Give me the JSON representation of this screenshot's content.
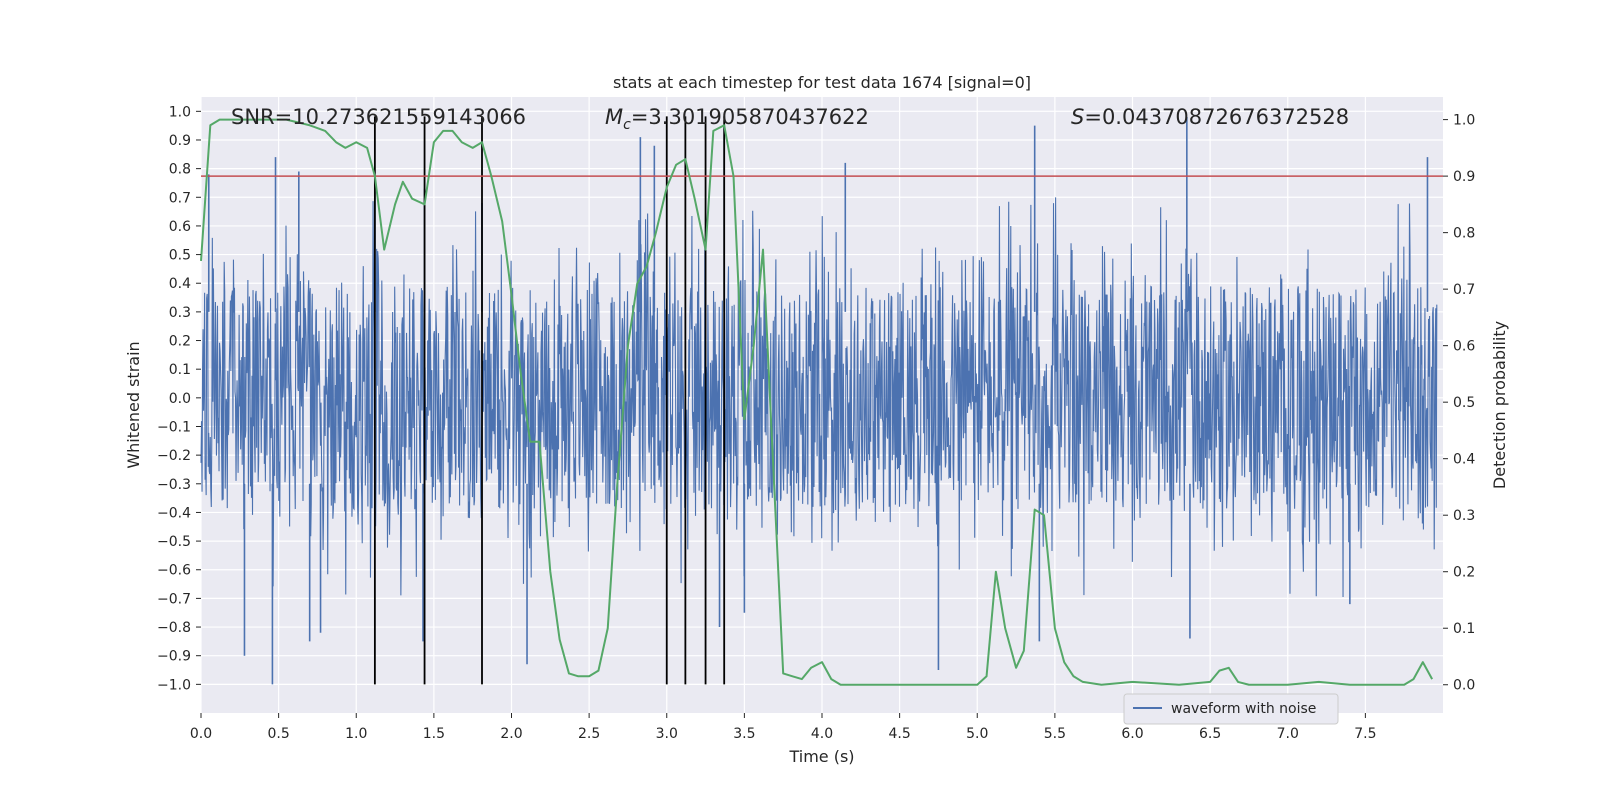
{
  "chart_data": {
    "type": "line",
    "title": "stats at each timestep for test data 1674 [signal=0]",
    "xlabel": "Time (s)",
    "ylabel_left": "Whitened strain",
    "ylabel_right": "Detection probability",
    "xlim": [
      0.0,
      8.0
    ],
    "ylim_left": [
      -1.1,
      1.05
    ],
    "ylim_right": [
      -0.05,
      1.04
    ],
    "xticks": [
      "0.0",
      "0.5",
      "1.0",
      "1.5",
      "2.0",
      "2.5",
      "3.0",
      "3.5",
      "4.0",
      "4.5",
      "5.0",
      "5.5",
      "6.0",
      "6.5",
      "7.0",
      "7.5"
    ],
    "yticks_left": [
      "1.0",
      "0.9",
      "0.8",
      "0.7",
      "0.6",
      "0.5",
      "0.4",
      "0.3",
      "0.2",
      "0.1",
      "0.0",
      "-0.1",
      "-0.2",
      "-0.3",
      "-0.4",
      "-0.5",
      "-0.6",
      "-0.7",
      "-0.8",
      "-0.9",
      "-1.0"
    ],
    "yticks_right": [
      "1.0",
      "0.9",
      "0.8",
      "0.7",
      "0.6",
      "0.5",
      "0.4",
      "0.3",
      "0.2",
      "0.1",
      "0.0"
    ],
    "grid": true,
    "annotations": {
      "snr": "SNR=10.273621559143066",
      "mc_symbol": "M",
      "mc_sub": "c",
      "mc_value": "=3.301905870437622",
      "s_symbol": "S",
      "s_value": "=0.04370872676372528"
    },
    "legend": {
      "label": "waveform with noise",
      "position": "lower-center-right"
    },
    "threshold": {
      "value_right_axis": 0.9,
      "color": "#c44e52"
    },
    "vertical_markers": [
      1.12,
      1.44,
      1.81,
      3.0,
      3.12,
      3.25,
      3.37
    ],
    "marker_range_left": [
      -1.0,
      1.0
    ],
    "waveform": {
      "name": "waveform with noise",
      "color": "#4c72b0",
      "spike_times_up": [
        0.05,
        0.48,
        0.63,
        1.12,
        1.44,
        1.81,
        2.83,
        2.92,
        3.37,
        4.15,
        5.37,
        6.35,
        7.9
      ],
      "spike_values_up": [
        0.78,
        0.84,
        0.79,
        0.77,
        0.73,
        0.68,
        0.91,
        0.88,
        0.95,
        0.82,
        0.95,
        0.98,
        0.84
      ],
      "spike_times_down": [
        0.28,
        0.46,
        0.7,
        0.77,
        1.43,
        2.1,
        3.34,
        3.5,
        4.75,
        5.4,
        6.37,
        7.4
      ],
      "spike_values_down": [
        -0.9,
        -1.0,
        -0.85,
        -0.82,
        -0.85,
        -0.93,
        -0.8,
        -0.75,
        -0.95,
        -0.85,
        -0.84,
        -0.72
      ]
    },
    "detection_probability": {
      "name": "detection probability",
      "color": "#55a868",
      "x": [
        0.0,
        0.06,
        0.12,
        0.25,
        0.4,
        0.55,
        0.7,
        0.8,
        0.87,
        0.93,
        1.0,
        1.07,
        1.12,
        1.18,
        1.25,
        1.3,
        1.36,
        1.44,
        1.5,
        1.56,
        1.62,
        1.68,
        1.75,
        1.81,
        1.87,
        1.94,
        2.0,
        2.06,
        2.12,
        2.18,
        2.25,
        2.31,
        2.37,
        2.43,
        2.5,
        2.56,
        2.62,
        2.68,
        2.75,
        2.81,
        2.87,
        2.93,
        3.0,
        3.06,
        3.12,
        3.18,
        3.25,
        3.3,
        3.37,
        3.43,
        3.5,
        3.56,
        3.62,
        3.68,
        3.75,
        3.81,
        3.87,
        3.93,
        4.0,
        4.06,
        4.12,
        4.3,
        4.6,
        4.8,
        5.0,
        5.06,
        5.12,
        5.18,
        5.25,
        5.3,
        5.37,
        5.43,
        5.5,
        5.56,
        5.62,
        5.68,
        5.8,
        6.0,
        6.3,
        6.5,
        6.56,
        6.62,
        6.68,
        6.75,
        6.87,
        7.0,
        7.2,
        7.4,
        7.6,
        7.75,
        7.81,
        7.87,
        7.93
      ],
      "y": [
        0.75,
        0.99,
        1.0,
        1.0,
        1.0,
        1.0,
        0.99,
        0.98,
        0.96,
        0.95,
        0.96,
        0.95,
        0.9,
        0.77,
        0.85,
        0.89,
        0.86,
        0.85,
        0.96,
        0.98,
        0.98,
        0.96,
        0.95,
        0.96,
        0.9,
        0.82,
        0.69,
        0.55,
        0.43,
        0.43,
        0.2,
        0.08,
        0.02,
        0.015,
        0.015,
        0.025,
        0.1,
        0.35,
        0.6,
        0.71,
        0.74,
        0.8,
        0.88,
        0.92,
        0.93,
        0.86,
        0.77,
        0.98,
        0.99,
        0.9,
        0.47,
        0.6,
        0.77,
        0.42,
        0.02,
        0.015,
        0.01,
        0.03,
        0.04,
        0.01,
        0.0,
        0.0,
        0.0,
        0.0,
        0.0,
        0.015,
        0.2,
        0.1,
        0.03,
        0.06,
        0.31,
        0.3,
        0.1,
        0.04,
        0.015,
        0.005,
        0.0,
        0.005,
        0.0,
        0.005,
        0.025,
        0.03,
        0.005,
        0.0,
        0.0,
        0.0,
        0.005,
        0.0,
        0.0,
        0.0,
        0.01,
        0.04,
        0.01
      ]
    }
  }
}
